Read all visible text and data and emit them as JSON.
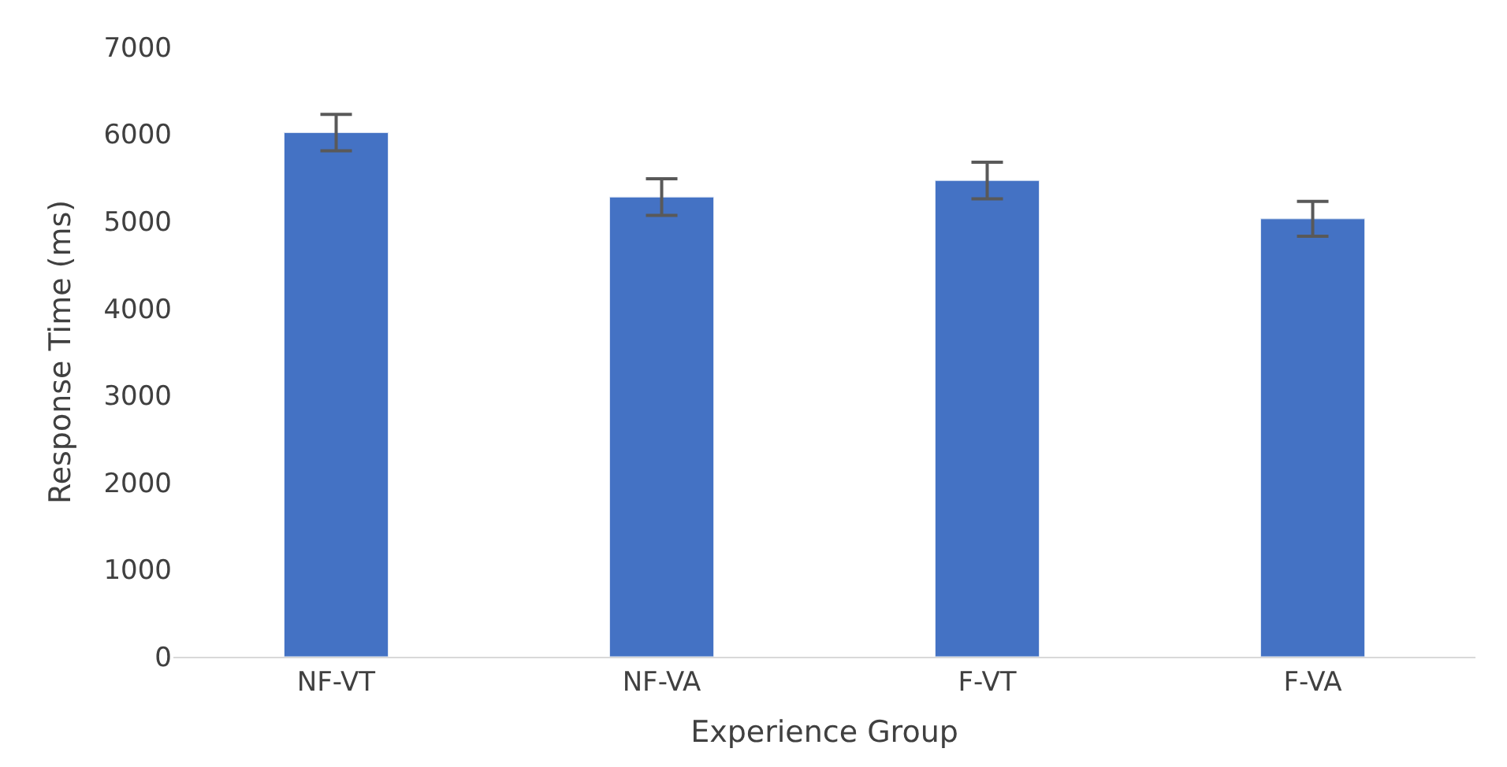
{
  "chart_data": {
    "type": "bar",
    "xlabel": "Experience Group",
    "ylabel": "Response Time (ms)",
    "categories": [
      "NF-VT",
      "NF-VA",
      "F-VT",
      "F-VA"
    ],
    "values": [
      6020,
      5280,
      5470,
      5030
    ],
    "errors": [
      210,
      210,
      210,
      200
    ],
    "color": "#4472c4",
    "ylim": [
      0,
      7000
    ],
    "yticks": [
      0,
      1000,
      2000,
      3000,
      4000,
      5000,
      6000,
      7000
    ],
    "grid": false
  }
}
